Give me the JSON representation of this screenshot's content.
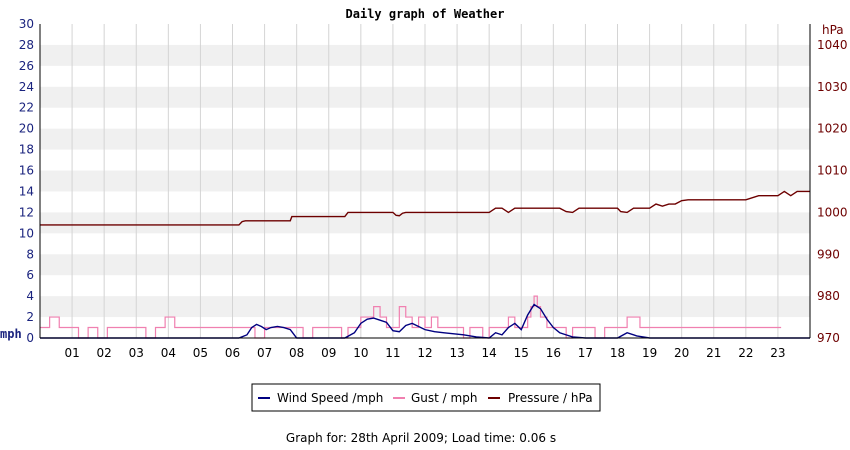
{
  "chart_data": {
    "type": "line",
    "title": "Daily graph of Weather",
    "footer": "Graph for: 28th April 2009; Load time: 0.06 s",
    "x_unit": "hour",
    "x_range": [
      0,
      24
    ],
    "x_tick_labels": [
      "01",
      "02",
      "03",
      "04",
      "05",
      "06",
      "07",
      "08",
      "09",
      "10",
      "11",
      "12",
      "13",
      "14",
      "15",
      "16",
      "17",
      "18",
      "19",
      "20",
      "21",
      "22",
      "23"
    ],
    "left_axis": {
      "label": "mph",
      "ylim": [
        0,
        30
      ],
      "ticks": [
        0,
        2,
        4,
        6,
        8,
        10,
        12,
        14,
        16,
        18,
        20,
        22,
        24,
        26,
        28,
        30
      ]
    },
    "right_axis": {
      "label": "hPa",
      "ylim": [
        970,
        1045
      ],
      "ticks": [
        970,
        980,
        990,
        1000,
        1010,
        1020,
        1030,
        1040
      ]
    },
    "grid": true,
    "legend_position": "bottom-center",
    "colors": {
      "wind": "#000080",
      "gust": "#f080b0",
      "pressure": "#6d0000",
      "grid_band": "#f0f0f0"
    },
    "series": [
      {
        "name": "Wind Speed /mph",
        "axis": "left",
        "x": [
          0,
          6.2,
          6.45,
          6.6,
          6.75,
          6.9,
          7.05,
          7.2,
          7.4,
          7.6,
          7.8,
          8,
          9.5,
          9.8,
          10,
          10.2,
          10.4,
          10.6,
          10.8,
          11,
          11.2,
          11.4,
          11.6,
          11.8,
          12,
          12.3,
          12.6,
          12.9,
          13.2,
          13.6,
          14,
          14.2,
          14.4,
          14.6,
          14.8,
          15,
          15.2,
          15.4,
          15.6,
          15.8,
          16,
          16.2,
          16.4,
          16.6,
          17,
          18,
          18.3,
          18.6,
          19,
          20,
          22,
          24
        ],
        "values": [
          0,
          0,
          0.3,
          1,
          1.3,
          1.1,
          0.8,
          1,
          1.1,
          1,
          0.8,
          0,
          0,
          0.5,
          1.4,
          1.8,
          1.9,
          1.7,
          1.5,
          0.7,
          0.6,
          1.2,
          1.4,
          1.1,
          0.8,
          0.6,
          0.5,
          0.4,
          0.3,
          0.1,
          0,
          0.5,
          0.3,
          1,
          1.4,
          0.8,
          2.2,
          3.2,
          2.8,
          1.8,
          1,
          0.5,
          0.3,
          0.1,
          0,
          0,
          0.5,
          0.2,
          0,
          0,
          0,
          0
        ]
      },
      {
        "name": "Gust / mph",
        "axis": "left",
        "x": [
          0,
          0.3,
          0.6,
          0.9,
          1.2,
          1.5,
          1.8,
          2.1,
          2.4,
          2.7,
          3,
          3.3,
          3.6,
          3.9,
          4.2,
          6.2,
          6.4,
          6.7,
          7,
          7.3,
          7.6,
          7.9,
          8.2,
          8.5,
          8.8,
          9.1,
          9.4,
          9.6,
          9.8,
          10,
          10.2,
          10.4,
          10.6,
          10.8,
          11,
          11.2,
          11.4,
          11.6,
          11.8,
          12,
          12.2,
          12.4,
          12.6,
          12.8,
          13,
          13.2,
          13.4,
          13.6,
          13.8,
          14,
          14.3,
          14.6,
          14.8,
          15,
          15.2,
          15.3,
          15.4,
          15.5,
          15.6,
          15.8,
          16,
          16.2,
          16.4,
          16.6,
          16.8,
          17,
          17.3,
          17.6,
          17.9,
          18.1,
          18.3,
          18.5,
          18.7,
          18.9,
          19.1,
          22.4,
          22.8
        ],
        "values": [
          1,
          2,
          1,
          1,
          0,
          1,
          0,
          1,
          1,
          1,
          1,
          0,
          1,
          2,
          1,
          1,
          1,
          0,
          1,
          1,
          1,
          1,
          0,
          1,
          1,
          1,
          0,
          1,
          1,
          2,
          2,
          3,
          2,
          1,
          1,
          3,
          2,
          1,
          2,
          1,
          2,
          1,
          1,
          1,
          1,
          0,
          1,
          1,
          0,
          1,
          1,
          2,
          1,
          1,
          2,
          3,
          4,
          3,
          2,
          1,
          1,
          1,
          0,
          1,
          1,
          1,
          0,
          1,
          1,
          1,
          2,
          2,
          1,
          1,
          1,
          1,
          1
        ]
      },
      {
        "name": "Pressure / hPa",
        "axis": "right",
        "x": [
          0,
          6.2,
          6.3,
          6.4,
          7.8,
          7.85,
          8,
          9.5,
          9.6,
          9.8,
          10,
          11,
          11.1,
          11.2,
          11.3,
          11.4,
          11.6,
          12,
          14,
          14.2,
          14.4,
          14.6,
          14.8,
          15,
          16.2,
          16.4,
          16.6,
          16.8,
          17,
          18,
          18.1,
          18.3,
          18.5,
          19,
          19.2,
          19.4,
          19.6,
          19.8,
          20,
          20.2,
          20.4,
          20.8,
          22,
          22.4,
          22.8,
          23,
          23.2,
          23.4,
          23.6,
          24
        ],
        "values": [
          997,
          997,
          997.8,
          998,
          998,
          999,
          999,
          999,
          1000,
          1000,
          1000,
          1000,
          999.3,
          999.2,
          999.8,
          1000,
          1000,
          1000,
          1000,
          1001,
          1001,
          1000,
          1001,
          1001,
          1001,
          1000.2,
          1000,
          1001,
          1001,
          1001,
          1000.2,
          1000,
          1001,
          1001,
          1002,
          1001.5,
          1002,
          1002,
          1002.8,
          1003,
          1003,
          1003,
          1003,
          1004,
          1004,
          1004,
          1005,
          1004,
          1005,
          1005
        ]
      }
    ]
  }
}
